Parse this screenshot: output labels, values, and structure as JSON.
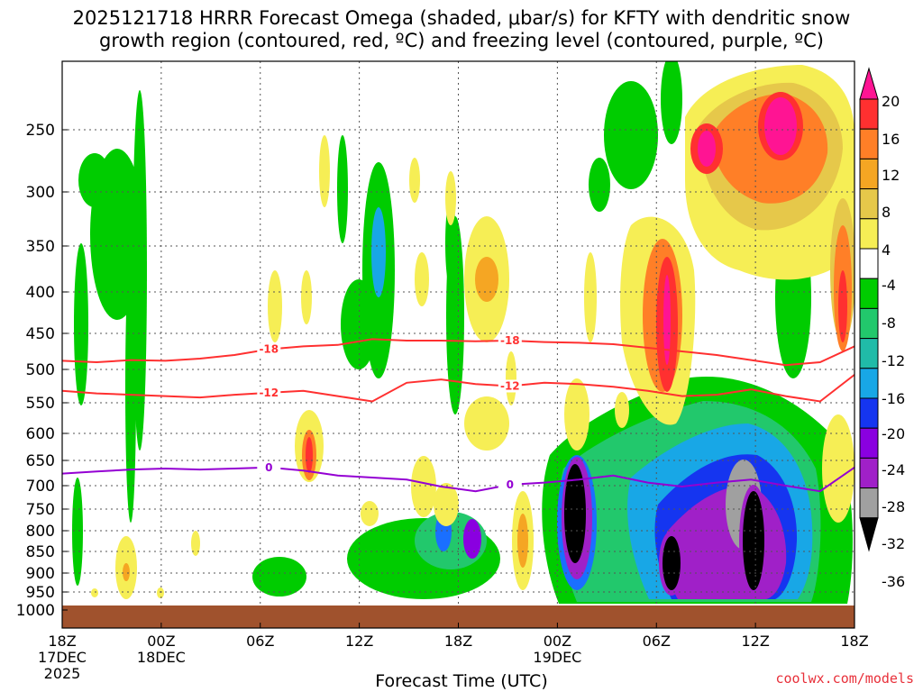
{
  "chart_data": {
    "type": "heatmap",
    "title_line1": "2025121718 HRRR Forecast Omega (shaded, μbar/s) for KFTY with dendritic snow",
    "title_line2": "growth region (contoured, red, ºC) and freezing level (contoured, purple, ºC)",
    "xlabel": "Forecast Time (UTC)",
    "x_ticks": [
      {
        "hour": 0,
        "labels": [
          "18Z",
          "17DEC",
          "2025"
        ]
      },
      {
        "hour": 6,
        "labels": [
          "00Z",
          "18DEC"
        ]
      },
      {
        "hour": 12,
        "labels": [
          "06Z"
        ]
      },
      {
        "hour": 18,
        "labels": [
          "12Z"
        ]
      },
      {
        "hour": 24,
        "labels": [
          "18Z"
        ]
      },
      {
        "hour": 30,
        "labels": [
          "00Z",
          "19DEC"
        ]
      },
      {
        "hour": 36,
        "labels": [
          "06Z"
        ]
      },
      {
        "hour": 42,
        "labels": [
          "12Z"
        ]
      },
      {
        "hour": 48,
        "labels": [
          "18Z"
        ]
      }
    ],
    "xlim": [
      0,
      48
    ],
    "y_ticks": [
      250,
      300,
      350,
      400,
      450,
      500,
      550,
      600,
      650,
      700,
      750,
      800,
      850,
      900,
      950,
      1000
    ],
    "ylim_hPa": [
      200,
      1000
    ],
    "colorbar": {
      "labels": [
        "20",
        "16",
        "12",
        "8",
        "4",
        "-4",
        "-8",
        "-12",
        "-16",
        "-20",
        "-24",
        "-28",
        "-32",
        "-36"
      ],
      "colors": [
        "#ff1493",
        "#ff3030",
        "#ff7f27",
        "#f5a623",
        "#e6c84a",
        "#f6ee55",
        "#ffffff",
        "#00cc00",
        "#22c86c",
        "#20bba8",
        "#18a7e6",
        "#1a6fff",
        "#1535f0",
        "#8a00e0",
        "#a020c8",
        "#a0a0a0",
        "#000000"
      ]
    },
    "contours": [
      {
        "label": "-18",
        "color": "#ff3030",
        "p": [
          488,
          490,
          487,
          488,
          485,
          480,
          472,
          468,
          466,
          458,
          460,
          460,
          461,
          460,
          462,
          463,
          465,
          470,
          475,
          480,
          487,
          494,
          490,
          468
        ]
      },
      {
        "label": "-12",
        "color": "#ff3030",
        "p": [
          532,
          536,
          538,
          540,
          542,
          538,
          535,
          532,
          540,
          548,
          520,
          515,
          522,
          525,
          520,
          522,
          526,
          532,
          540,
          538,
          530,
          540,
          548,
          508
        ]
      },
      {
        "label": "0",
        "color": "#9400d3",
        "p": [
          676,
          672,
          668,
          666,
          668,
          666,
          664,
          670,
          680,
          684,
          688,
          702,
          712,
          698,
          694,
          688,
          680,
          694,
          702,
          694,
          688,
          700,
          712,
          664
        ]
      }
    ],
    "omega_regions": [
      {
        "level": "-4",
        "h0": 4,
        "h1": 6.5,
        "p0": 300,
        "p1": 720
      },
      {
        "level": "-8",
        "h0": 27,
        "h1": 48,
        "p0": 560,
        "p1": 970
      },
      {
        "level": "-16",
        "h0": 35,
        "h1": 46,
        "p0": 600,
        "p1": 960
      },
      {
        "level": "-28",
        "h0": 37,
        "h1": 45,
        "p0": 640,
        "p1": 960
      },
      {
        "level": "-36",
        "h0": 30.5,
        "h1": 31.5,
        "p0": 680,
        "p1": 820
      },
      {
        "level": "-36",
        "h0": 41,
        "h1": 42,
        "p0": 690,
        "p1": 900
      },
      {
        "level": "-36",
        "h0": 37,
        "h1": 38,
        "p0": 820,
        "p1": 950
      },
      {
        "level": "20",
        "h0": 42,
        "h1": 45,
        "p0": 220,
        "p1": 280
      },
      {
        "level": "16",
        "h0": 38.5,
        "h1": 40,
        "p0": 230,
        "p1": 290
      }
    ]
  },
  "credit": "coolwx.com/models"
}
